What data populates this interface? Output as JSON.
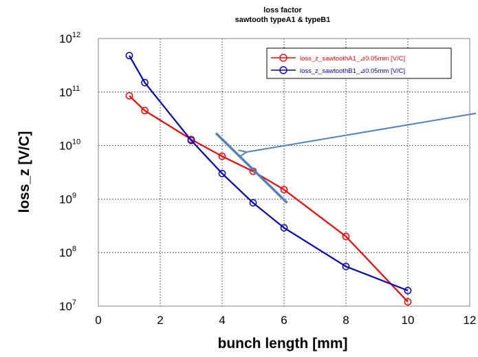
{
  "chart_data": {
    "type": "line",
    "title": [
      "loss factor",
      "sawtooth typeA1 & typeB1"
    ],
    "xlabel": "bunch length [mm]",
    "ylabel": "loss_z [V/C]",
    "xlim": [
      0,
      12
    ],
    "ylim": [
      10000000.0,
      1000000000000.0
    ],
    "yscale": "log",
    "grid": true,
    "legend_position": "top-right",
    "x_ticks": [
      "0",
      "2",
      "4",
      "6",
      "8",
      "10",
      "12"
    ],
    "y_ticks": [
      {
        "base": "10",
        "exp": "7"
      },
      {
        "base": "10",
        "exp": "8"
      },
      {
        "base": "10",
        "exp": "9"
      },
      {
        "base": "10",
        "exp": "10"
      },
      {
        "base": "10",
        "exp": "11"
      },
      {
        "base": "10",
        "exp": "12"
      }
    ],
    "series": [
      {
        "name": "loss_z_sawtoothA1_⊿0.05mm [V/C]",
        "color": "#ff0000",
        "marker": "circle",
        "x": [
          1,
          1.5,
          3,
          4,
          5,
          6,
          8,
          10
        ],
        "y": [
          85000000000.0,
          45000000000.0,
          13000000000.0,
          6300000000.0,
          3300000000.0,
          1500000000.0,
          200000000.0,
          12000000.0
        ]
      },
      {
        "name": "loss_z_sawtoothB1_⊿0.05mm [V/C]",
        "color": "#0000cc",
        "marker": "circle",
        "x": [
          1,
          1.5,
          3,
          4,
          5,
          6,
          8,
          10
        ],
        "y": [
          480000000000.0,
          150000000000.0,
          12500000000.0,
          3000000000.0,
          850000000.0,
          290000000.0,
          55000000.0,
          19500000.0
        ]
      }
    ],
    "annotations": [
      {
        "type": "line",
        "color": "#4f81bd",
        "x": [
          3.8,
          6.1
        ],
        "y": [
          17000000000.0,
          850000000.0
        ]
      },
      {
        "type": "arrow",
        "color": "#4f81bd",
        "from_x": 12.2,
        "from_y": 40000000000.0,
        "to_x": 4.75,
        "to_y": 7500000000.0
      }
    ]
  }
}
